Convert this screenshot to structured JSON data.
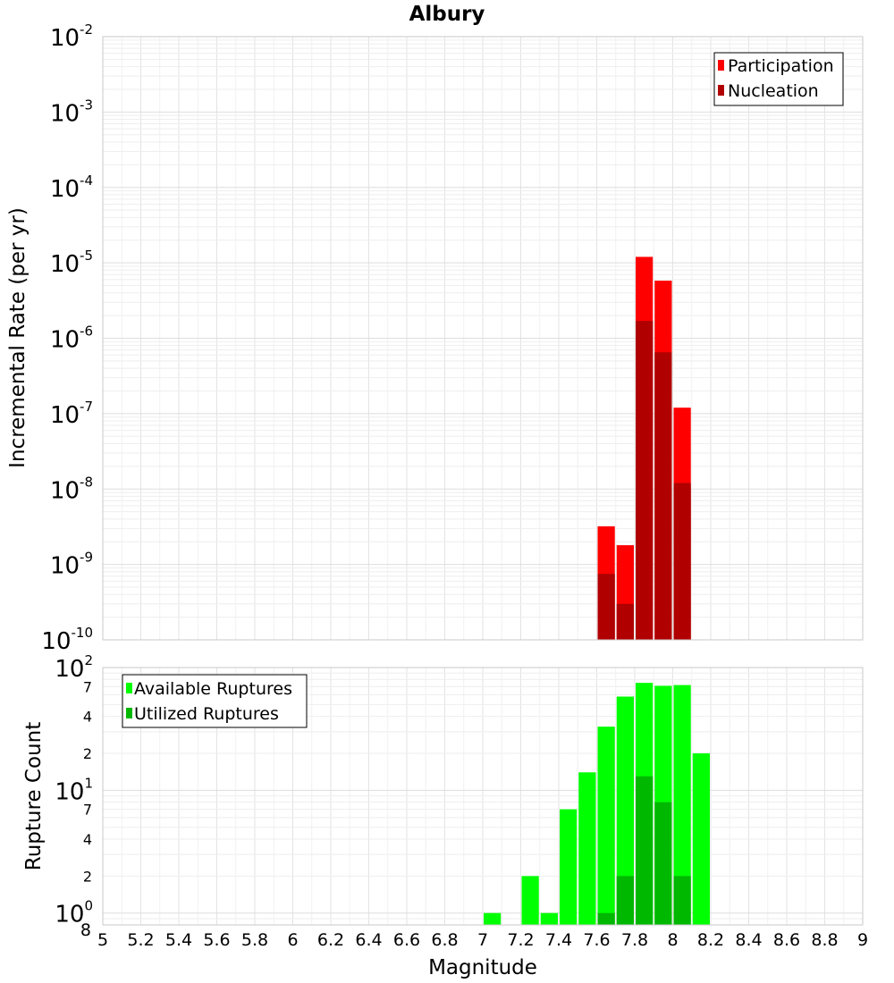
{
  "chart_data": [
    {
      "type": "bar",
      "title": "Albury",
      "xlabel": "",
      "ylabel": "Incremental Rate (per yr)",
      "yscale": "log",
      "ylim": [
        1e-10,
        0.01
      ],
      "xlim": [
        5,
        9
      ],
      "bin_width": 0.1,
      "grid": true,
      "legend_position": "top-right",
      "y_ticks": [
        {
          "base": "10",
          "exp": "-2",
          "value": 0.01
        },
        {
          "base": "10",
          "exp": "-3",
          "value": 0.001
        },
        {
          "base": "10",
          "exp": "-4",
          "value": 0.0001
        },
        {
          "base": "10",
          "exp": "-5",
          "value": 1e-05
        },
        {
          "base": "10",
          "exp": "-6",
          "value": 1e-06
        },
        {
          "base": "10",
          "exp": "-7",
          "value": 1e-07
        },
        {
          "base": "10",
          "exp": "-8",
          "value": 1e-08
        },
        {
          "base": "10",
          "exp": "-9",
          "value": 1e-09
        },
        {
          "base": "10",
          "exp": "-10",
          "value": 1e-10
        }
      ],
      "series": [
        {
          "name": "Participation",
          "color": "#ff0000",
          "x": [
            7.65,
            7.75,
            7.85,
            7.95,
            8.05
          ],
          "values": [
            3.2e-09,
            1.8e-09,
            1.2e-05,
            5.8e-06,
            1.2e-07
          ]
        },
        {
          "name": "Nucleation",
          "color": "#b00000",
          "x": [
            7.65,
            7.75,
            7.85,
            7.95,
            8.05
          ],
          "values": [
            7.5e-10,
            3e-10,
            1.7e-06,
            6.5e-07,
            1.2e-08
          ]
        }
      ]
    },
    {
      "type": "bar",
      "title": "",
      "xlabel": "Magnitude",
      "ylabel": "Rupture Count",
      "yscale": "log",
      "ylim": [
        0.8,
        100
      ],
      "xlim": [
        5,
        9
      ],
      "bin_width": 0.1,
      "grid": true,
      "legend_position": "top-left",
      "x_ticks": [
        "5",
        "5.2",
        "5.4",
        "5.6",
        "5.8",
        "6",
        "6.2",
        "6.4",
        "6.6",
        "6.8",
        "7",
        "7.2",
        "7.4",
        "7.6",
        "7.8",
        "8",
        "8.2",
        "8.4",
        "8.6",
        "8.8",
        "9"
      ],
      "y_ticks": [
        {
          "base": "10",
          "exp": "2",
          "value": 100
        },
        {
          "base": "10",
          "exp": "1",
          "value": 10
        },
        {
          "base": "10",
          "exp": "0",
          "value": 1
        }
      ],
      "y_minor_ticks": [
        {
          "label": "7",
          "value": 70
        },
        {
          "label": "4",
          "value": 40
        },
        {
          "label": "2",
          "value": 20
        },
        {
          "label": "7",
          "value": 7
        },
        {
          "label": "4",
          "value": 4
        },
        {
          "label": "2",
          "value": 2
        },
        {
          "label": "8",
          "value": 0.8
        }
      ],
      "series": [
        {
          "name": "Available Ruptures",
          "color": "#00ff00",
          "x": [
            7.05,
            7.25,
            7.35,
            7.45,
            7.55,
            7.65,
            7.75,
            7.85,
            7.95,
            8.05,
            8.15
          ],
          "values": [
            1,
            2,
            1,
            7,
            14,
            33,
            58,
            75,
            71,
            72,
            20
          ]
        },
        {
          "name": "Utilized Ruptures",
          "color": "#00b800",
          "x": [
            7.65,
            7.75,
            7.85,
            7.95,
            8.05
          ],
          "values": [
            1,
            2,
            13,
            8,
            2
          ]
        }
      ]
    }
  ]
}
